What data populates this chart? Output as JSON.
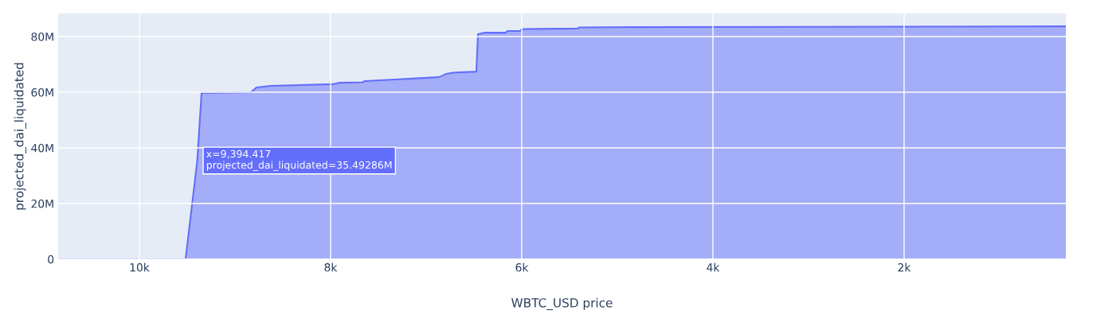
{
  "chart_data": {
    "type": "area",
    "xlabel": "WBTC_USD price",
    "ylabel": "projected_dai_liquidated",
    "x": [
      10850,
      9517,
      9394.417,
      9350,
      8833,
      8775,
      8625,
      7975,
      7917,
      7667,
      7642,
      6875,
      6833,
      6792,
      6708,
      6475,
      6458,
      6392,
      6167,
      6150,
      6017,
      6000,
      5417,
      5400,
      4792,
      308
    ],
    "series": [
      {
        "color": "#636efa",
        "values": [
          0,
          0,
          35492860,
          59700000,
          60000000,
          61700000,
          62300000,
          62900000,
          63400000,
          63600000,
          64000000,
          65400000,
          65900000,
          66600000,
          67100000,
          67400000,
          80900000,
          81400000,
          81400000,
          82000000,
          82000000,
          82700000,
          82900000,
          83300000,
          83400000,
          83700000
        ]
      }
    ],
    "xlim": [
      10850,
      308
    ],
    "ylim": [
      0,
      88300000
    ],
    "xticks": [
      {
        "value": 10000,
        "label": "10k"
      },
      {
        "value": 8000,
        "label": "8k"
      },
      {
        "value": 6000,
        "label": "6k"
      },
      {
        "value": 4000,
        "label": "4k"
      },
      {
        "value": 2000,
        "label": "2k"
      }
    ],
    "yticks": [
      0,
      {
        "value": 20000000,
        "label": "20M"
      },
      {
        "value": 40000000,
        "label": "40M"
      },
      {
        "value": 60000000,
        "label": "60M"
      },
      {
        "value": 80000000,
        "label": "80M"
      }
    ],
    "grid": true,
    "annotations": [
      {
        "text": "x=9,394.417\nprojected_dai_liquidated=35.49286M",
        "x": 9394.417,
        "y": 35492860
      }
    ]
  }
}
